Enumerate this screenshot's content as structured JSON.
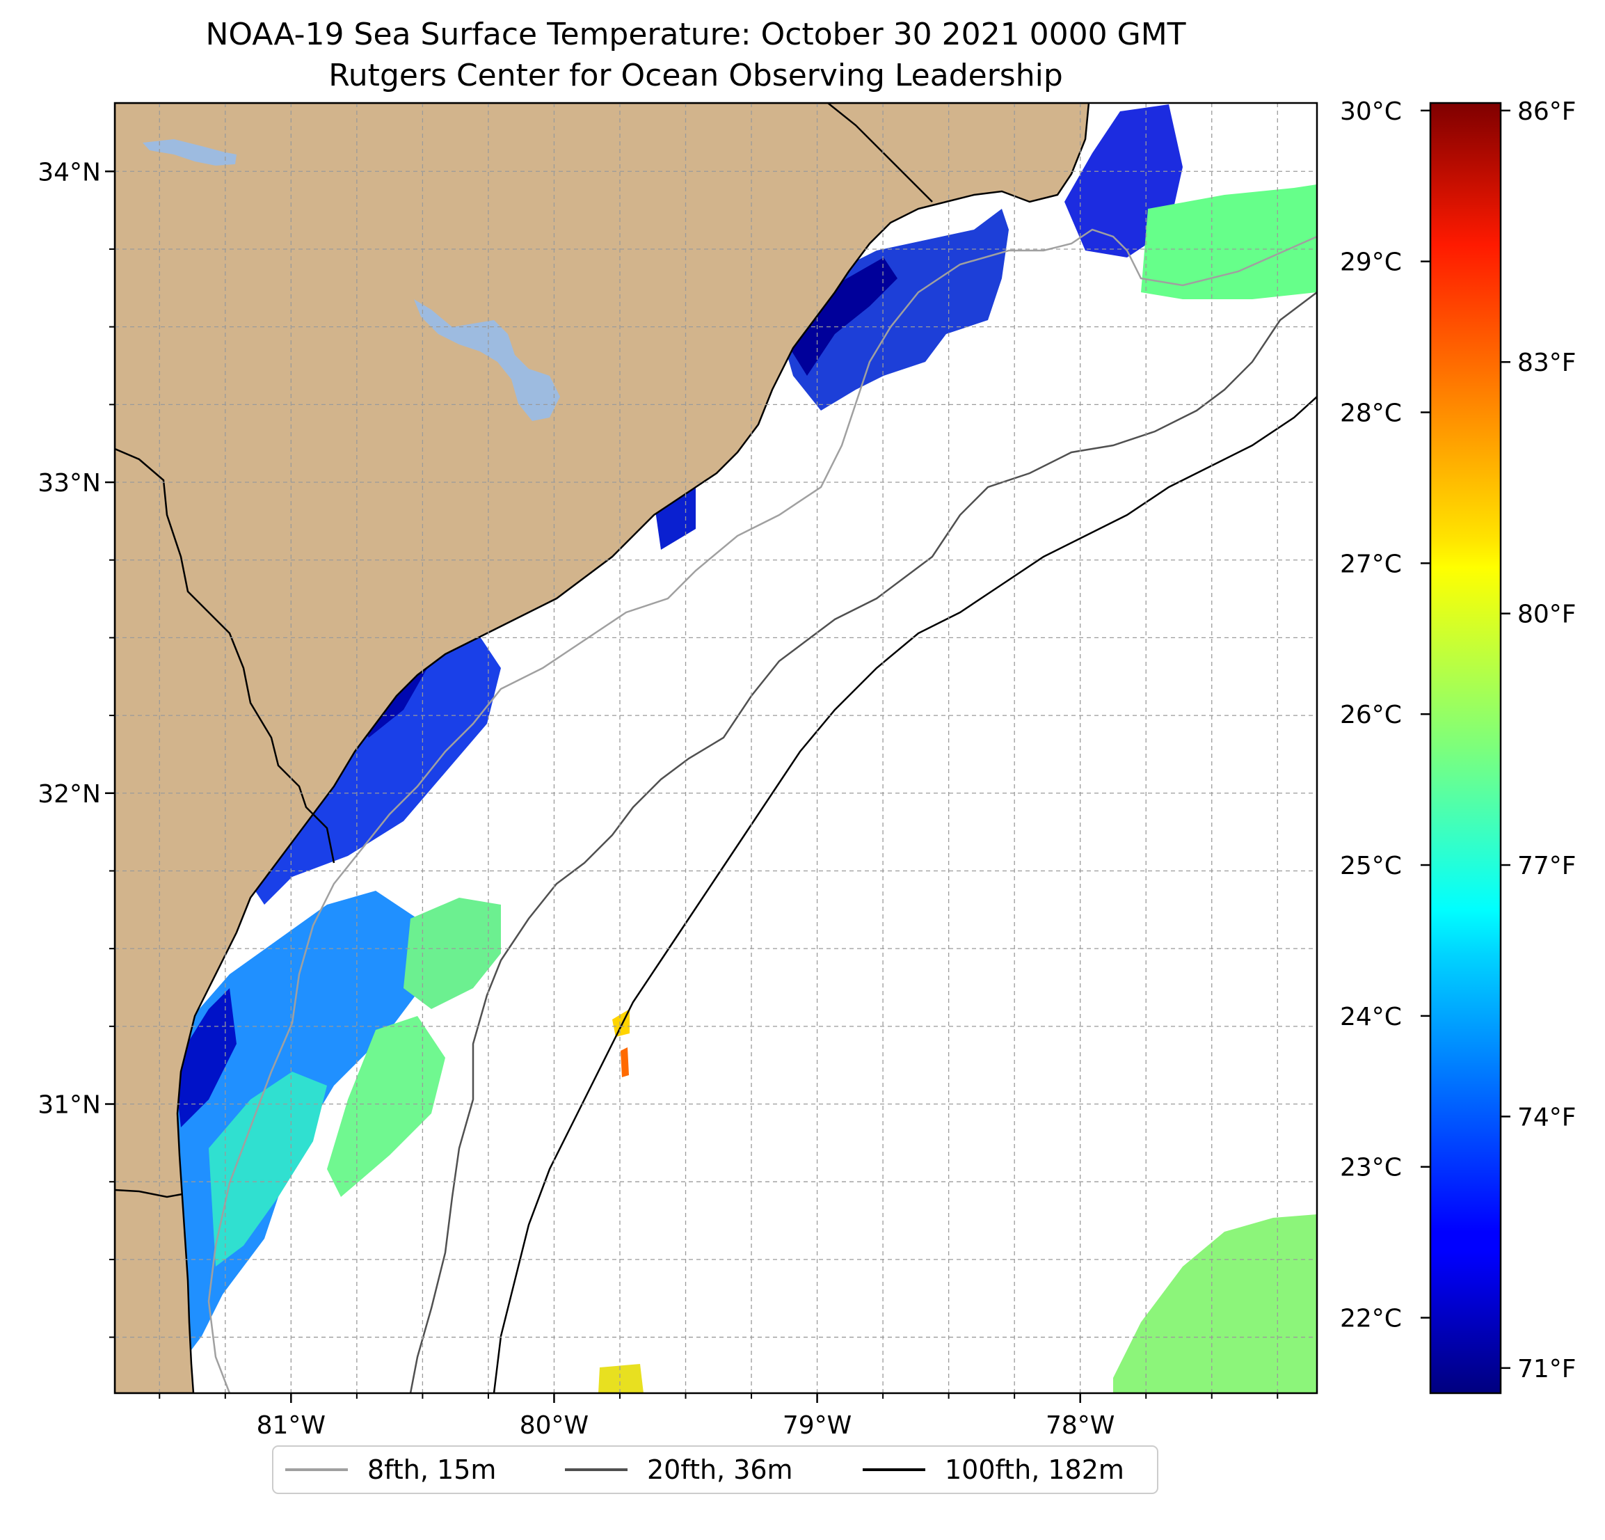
{
  "title": {
    "line1": "NOAA-19 Sea Surface Temperature: October 30 2021 0000 GMT",
    "line2": "Rutgers Center for Ocean Observing Leadership"
  },
  "map": {
    "lon_range": [
      -81.67,
      -77.1
    ],
    "lat_range": [
      30.07,
      34.22
    ],
    "land_color": "#d2b48c",
    "lake_color": "#9dbbe0",
    "lon_ticks": [
      {
        "lon": -81,
        "label": "81°W"
      },
      {
        "lon": -80,
        "label": "80°W"
      },
      {
        "lon": -79,
        "label": "79°W"
      },
      {
        "lon": -78,
        "label": "78°W"
      }
    ],
    "lat_ticks": [
      {
        "lat": 34,
        "label": "34°N"
      },
      {
        "lat": 33,
        "label": "33°N"
      },
      {
        "lat": 32,
        "label": "32°N"
      },
      {
        "lat": 31,
        "label": "31°N"
      }
    ]
  },
  "colorbar": {
    "colormap": "jet",
    "range_c": [
      21.5,
      30.05
    ],
    "celsius_ticks": [
      {
        "value": 22,
        "label": "22°C"
      },
      {
        "value": 23,
        "label": "23°C"
      },
      {
        "value": 24,
        "label": "24°C"
      },
      {
        "value": 25,
        "label": "25°C"
      },
      {
        "value": 26,
        "label": "26°C"
      },
      {
        "value": 27,
        "label": "27°C"
      },
      {
        "value": 28,
        "label": "28°C"
      },
      {
        "value": 29,
        "label": "29°C"
      },
      {
        "value": 30,
        "label": "30°C"
      }
    ],
    "fahrenheit_ticks": [
      {
        "value": 71,
        "label": "71°F"
      },
      {
        "value": 74,
        "label": "74°F"
      },
      {
        "value": 77,
        "label": "77°F"
      },
      {
        "value": 80,
        "label": "80°F"
      },
      {
        "value": 83,
        "label": "83°F"
      },
      {
        "value": 86,
        "label": "86°F"
      }
    ]
  },
  "legend": {
    "placement": "bottom-center",
    "items": [
      {
        "label": "8fth, 15m",
        "color": "#a0a0a0"
      },
      {
        "label": "20fth, 36m",
        "color": "#505050"
      },
      {
        "label": "100fth, 182m",
        "color": "#000000"
      }
    ]
  }
}
